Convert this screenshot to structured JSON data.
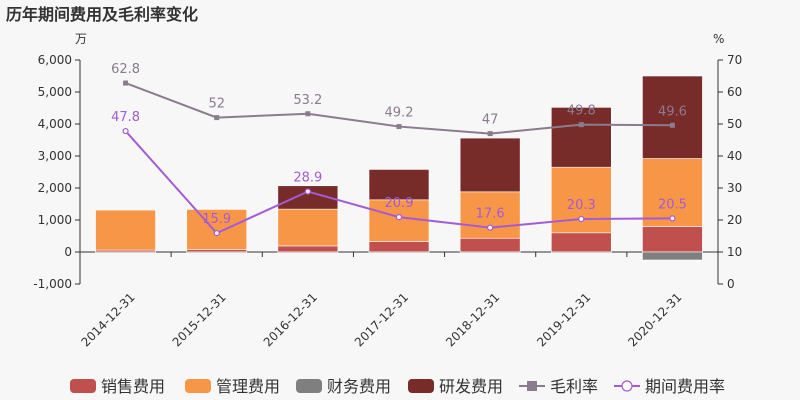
{
  "chart_data": {
    "type": "bar",
    "title": "历年期间费用及毛利率变化",
    "left_unit": "万",
    "right_unit": "%",
    "categories": [
      "2014-12-31",
      "2015-12-31",
      "2016-12-31",
      "2017-12-31",
      "2018-12-31",
      "2019-12-31",
      "2020-12-31"
    ],
    "left_ticks": [
      "-1,000",
      "0",
      "1,000",
      "2,000",
      "3,000",
      "4,000",
      "5,000",
      "6,000"
    ],
    "right_ticks": [
      "0",
      "10",
      "20",
      "30",
      "40",
      "50",
      "60",
      "70"
    ],
    "ylim_left": [
      -1000,
      6000
    ],
    "ylim_right": [
      0,
      70
    ],
    "bar_series": [
      {
        "name": "销售费用",
        "color": "#c0504d",
        "values": [
          60,
          80,
          190,
          330,
          430,
          600,
          800
        ]
      },
      {
        "name": "管理费用",
        "color": "#f79646",
        "values": [
          1250,
          1250,
          1150,
          1300,
          1450,
          2050,
          2120
        ]
      },
      {
        "name": "财务费用",
        "color": "#7f7f7f",
        "values": [
          -30,
          -30,
          -30,
          -30,
          -30,
          -30,
          -250
        ]
      },
      {
        "name": "研发费用",
        "color": "#772c2a",
        "values": [
          0,
          0,
          730,
          950,
          1680,
          1870,
          2580
        ]
      }
    ],
    "line_series": [
      {
        "name": "毛利率",
        "color": "#8b7b8e",
        "marker": "square",
        "values": [
          62.8,
          52,
          53.2,
          49.2,
          47,
          49.8,
          49.6
        ],
        "labels": [
          "62.8",
          "52",
          "53.2",
          "49.2",
          "47",
          "49.8",
          "49.6"
        ]
      },
      {
        "name": "期间费用率",
        "color": "#a35bd8",
        "marker": "circle",
        "values": [
          47.8,
          15.9,
          28.9,
          20.9,
          17.6,
          20.3,
          20.5
        ],
        "labels": [
          "47.8",
          "15.9",
          "28.9",
          "20.9",
          "17.6",
          "20.3",
          "20.5"
        ]
      }
    ],
    "grid": false,
    "legend_position": "bottom"
  }
}
